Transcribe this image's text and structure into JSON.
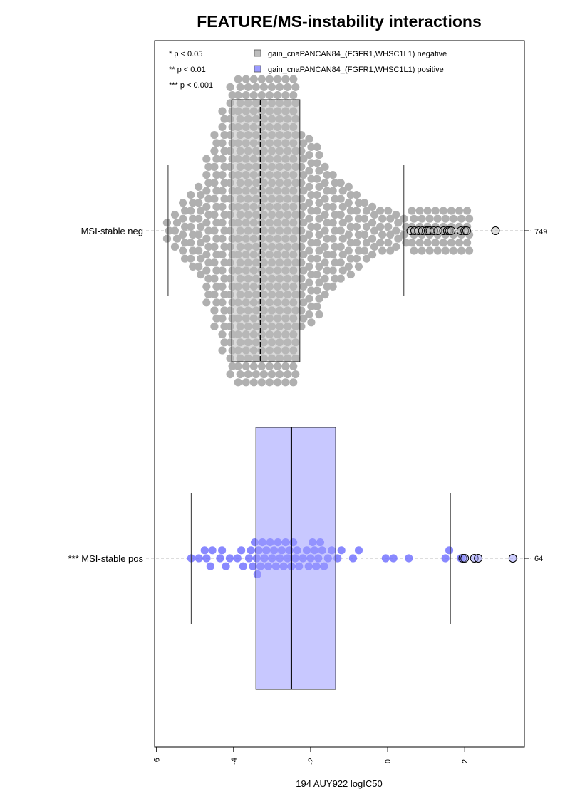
{
  "chart_data": {
    "type": "box",
    "title": "FEATURE/MS-instability interactions",
    "xlabel": "194 AUY922 logIC50",
    "x_ticks": [
      -6,
      -4,
      -2,
      0,
      2
    ],
    "xlim": [
      -6.05,
      3.55
    ],
    "significance_legend": [
      "* p < 0.05",
      "** p < 0.01",
      "*** p < 0.001"
    ],
    "legend": [
      {
        "label": "gain_cnaPANCAN84_(FGFR1,WHSC1L1) negative",
        "color": "#bdbdbd"
      },
      {
        "label": "gain_cnaPANCAN84_(FGFR1,WHSC1L1) positive",
        "color": "#9b9bff"
      }
    ],
    "groups": [
      {
        "label": "MSI-stable neg",
        "n": "749",
        "box_color": "#bdbdbd",
        "point_color": "#b0b0b0",
        "whisker_low": -5.7,
        "q1": -4.05,
        "median": -3.3,
        "q3": -2.28,
        "whisker_high": 0.42,
        "outliers": [
          0.6,
          0.7,
          0.8,
          0.9,
          1.0,
          1.05,
          1.1,
          1.2,
          1.3,
          1.45,
          1.55,
          1.6,
          1.65,
          1.9,
          2.0,
          2.05,
          2.8
        ]
      },
      {
        "label": "*** MSI-stable pos",
        "n": "64",
        "box_color": "#9b9bff",
        "point_color": "#6b6bff",
        "whisker_low": -5.1,
        "q1": -3.42,
        "median": -2.5,
        "q3": -1.35,
        "whisker_high": 1.63,
        "outliers": [
          1.95,
          2.0,
          2.25,
          2.35,
          3.25
        ],
        "points": [
          -5.1,
          -4.9,
          -4.75,
          -4.7,
          -4.6,
          -4.55,
          -4.35,
          -4.3,
          -4.2,
          -4.1,
          -3.9,
          -3.8,
          -3.75,
          -3.6,
          -3.55,
          -3.5,
          -3.45,
          -3.4,
          -3.38,
          -3.35,
          -3.3,
          -3.25,
          -3.2,
          -3.15,
          -3.1,
          -3.05,
          -3.0,
          -2.95,
          -2.9,
          -2.85,
          -2.8,
          -2.75,
          -2.7,
          -2.65,
          -2.6,
          -2.55,
          -2.5,
          -2.45,
          -2.4,
          -2.35,
          -2.3,
          -2.2,
          -2.1,
          -2.05,
          -2.0,
          -1.95,
          -1.9,
          -1.85,
          -1.8,
          -1.75,
          -1.7,
          -1.65,
          -1.55,
          -1.45,
          -1.3,
          -1.2,
          -0.9,
          -0.75,
          -0.05,
          0.15,
          0.55,
          1.5,
          1.6,
          1.9
        ]
      }
    ]
  }
}
